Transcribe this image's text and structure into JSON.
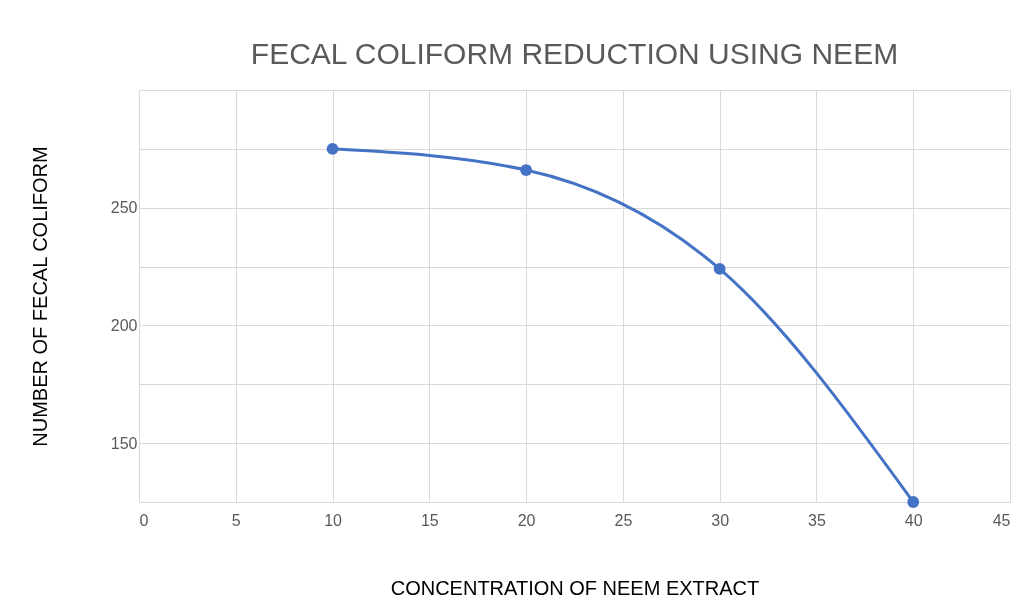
{
  "chart_data": {
    "type": "line",
    "title": "FECAL COLIFORM REDUCTION  USING NEEM",
    "xlabel": "CONCENTRATION    OF NEEM  EXTRACT",
    "ylabel": "NUMBER OF FECAL COLIFORM",
    "x": [
      10,
      20,
      30,
      40
    ],
    "series": [
      {
        "color": "#4472c4",
        "values": [
          275,
          266,
          224,
          125
        ]
      }
    ],
    "xlim": [
      0,
      45
    ],
    "xticks": [
      0,
      5,
      10,
      15,
      20,
      25,
      30,
      35,
      40,
      45
    ],
    "ylim": [
      125,
      300
    ],
    "yticks": [
      {
        "value": 125,
        "label": null
      },
      150,
      {
        "value": 175,
        "label": null
      },
      200,
      {
        "value": 225,
        "label": null
      },
      250,
      {
        "value": 275,
        "label": null
      },
      {
        "value": 300,
        "label": null
      }
    ],
    "grid": true,
    "marker": "circle",
    "line_style": "solid"
  }
}
